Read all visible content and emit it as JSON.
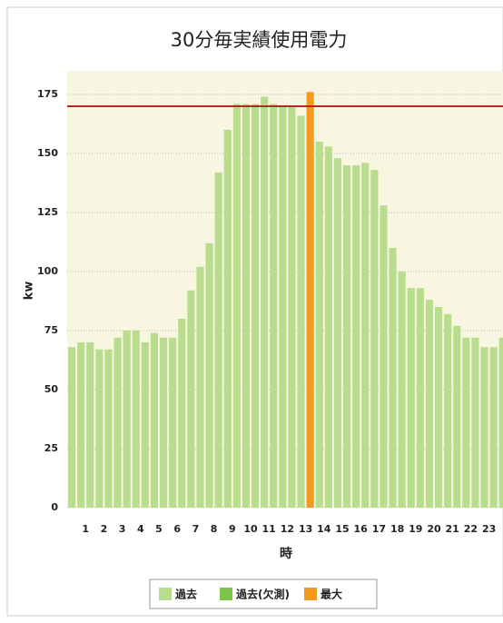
{
  "chart_data": {
    "type": "bar",
    "title": "30分毎実績使用電力",
    "xlabel": "時",
    "ylabel": "kw",
    "categories": [
      null,
      null,
      "1",
      null,
      "2",
      null,
      "3",
      null,
      "4",
      null,
      "5",
      null,
      "6",
      null,
      "7",
      null,
      "8",
      null,
      "9",
      null,
      "10",
      null,
      "11",
      null,
      "12",
      null,
      "13",
      null,
      "14",
      null,
      "15",
      null,
      "16",
      null,
      "17",
      null,
      "18",
      null,
      "19",
      null,
      "20",
      null,
      "21",
      null,
      "22",
      null,
      "23",
      null
    ],
    "series": [
      {
        "name": "過去",
        "color": "#b8dd8c",
        "values": [
          68,
          70,
          70,
          67,
          67,
          72,
          75,
          75,
          70,
          74,
          72,
          72,
          80,
          92,
          102,
          112,
          142,
          160,
          171,
          171,
          171,
          174,
          171,
          170,
          170,
          166,
          null,
          155,
          153,
          148,
          145,
          145,
          146,
          143,
          128,
          110,
          100,
          93,
          93,
          88,
          85,
          82,
          77,
          72,
          72,
          68,
          68,
          72
        ]
      },
      {
        "name": "過去(欠測)",
        "color": "#7cc44b",
        "values": [
          null,
          null,
          null,
          null,
          null,
          null,
          null,
          null,
          null,
          null,
          null,
          null,
          null,
          null,
          null,
          null,
          null,
          null,
          null,
          null,
          null,
          null,
          null,
          null,
          null,
          null,
          null,
          null,
          null,
          null,
          null,
          null,
          null,
          null,
          null,
          null,
          null,
          null,
          null,
          null,
          null,
          null,
          null,
          null,
          null,
          null,
          null,
          null
        ]
      },
      {
        "name": "最大",
        "color": "#f39a1e",
        "values": [
          null,
          null,
          null,
          null,
          null,
          null,
          null,
          null,
          null,
          null,
          null,
          null,
          null,
          null,
          null,
          null,
          null,
          null,
          null,
          null,
          null,
          null,
          null,
          null,
          null,
          null,
          176,
          null,
          null,
          null,
          null,
          null,
          null,
          null,
          null,
          null,
          null,
          null,
          null,
          null,
          null,
          null,
          null,
          null,
          null,
          null,
          null,
          null
        ]
      }
    ],
    "reference_line": {
      "value": 170,
      "color": "#b02828"
    },
    "ylim": [
      0,
      185
    ],
    "yticks": [
      0,
      25,
      50,
      75,
      100,
      125,
      150,
      175
    ],
    "grid": true
  }
}
